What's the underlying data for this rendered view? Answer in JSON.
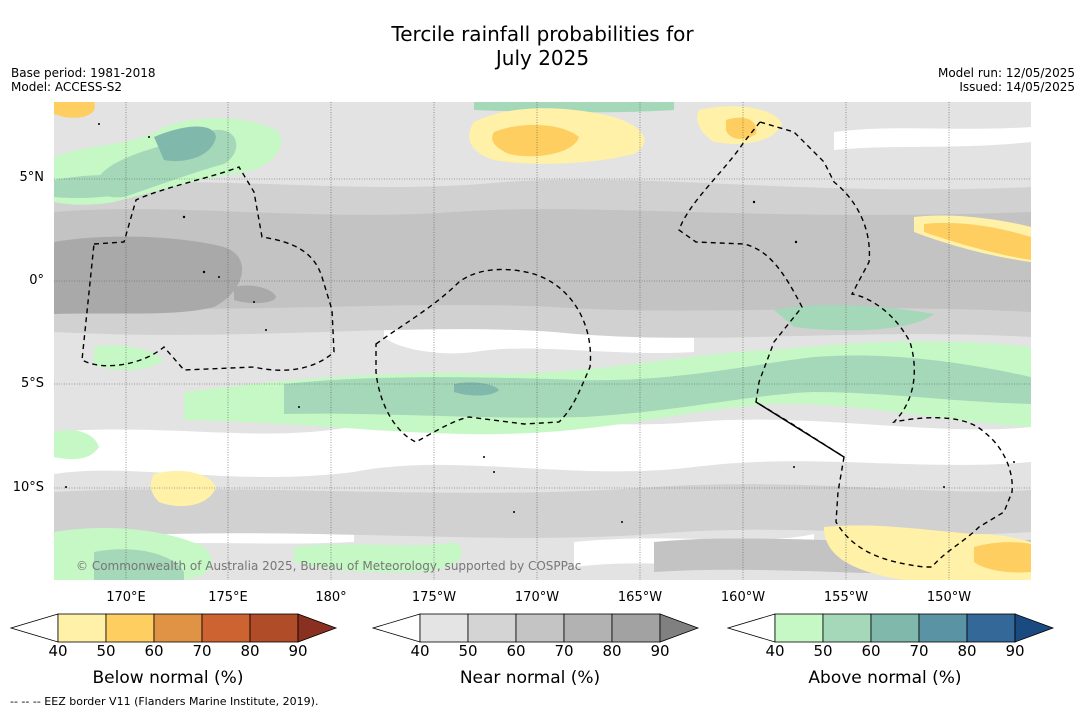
{
  "title_line1": "Tercile rainfall probabilities for",
  "title_line2": "July 2025",
  "base_period": "Base period: 1981-2018",
  "model": "Model: ACCESS-S2",
  "model_run": "Model run: 12/05/2025",
  "issued": "Issued: 14/05/2025",
  "lat_labels": [
    "5°N",
    "0°",
    "5°S",
    "10°S"
  ],
  "lon_labels": [
    "170°E",
    "175°E",
    "180°",
    "175°W",
    "170°W",
    "165°W",
    "160°W",
    "155°W",
    "150°W"
  ],
  "copyright": "© Commonwealth of Australia 2025, Bureau of Meteorology, supported by COSPPac",
  "colorbars": [
    {
      "title": "Below normal (%)",
      "ticks": [
        "40",
        "50",
        "60",
        "70",
        "80",
        "90"
      ],
      "colors": [
        "#fff1a8",
        "#fecf60",
        "#e09345",
        "#cc6330",
        "#b04c28",
        "#8a3020"
      ]
    },
    {
      "title": "Near normal (%)",
      "ticks": [
        "40",
        "50",
        "60",
        "70",
        "80",
        "90"
      ],
      "colors": [
        "#e4e4e4",
        "#d4d4d4",
        "#c4c4c4",
        "#b2b2b2",
        "#a2a2a2",
        "#808080"
      ]
    },
    {
      "title": "Above normal (%)",
      "ticks": [
        "40",
        "50",
        "60",
        "70",
        "80",
        "90"
      ],
      "colors": [
        "#c6f8c6",
        "#a4d8b8",
        "#80b8ac",
        "#5a94a4",
        "#346898",
        "#1a4a80"
      ]
    }
  ],
  "footer": "--  --  -- EEZ border V11 (Flanders Marine Institute, 2019)."
}
